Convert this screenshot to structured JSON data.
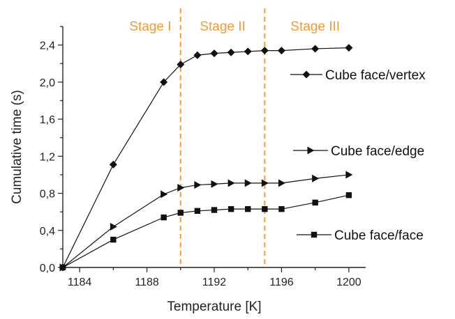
{
  "chart_data": {
    "type": "line",
    "title": "",
    "xlabel": "Temperature [K]",
    "ylabel": "Cumulative time (s)",
    "xlim": [
      1183,
      1201
    ],
    "ylim": [
      0,
      2.6
    ],
    "xticks": [
      1184,
      1188,
      1192,
      1196,
      1200
    ],
    "xtick_labels": [
      "1184",
      "1188",
      "1192",
      "1196",
      "1200"
    ],
    "yticks": [
      0,
      0.4,
      0.8,
      1.2,
      1.6,
      2.0,
      2.4
    ],
    "ytick_labels": [
      "0,0",
      "0,4",
      "0,8",
      "1,2",
      "1,6",
      "2,0",
      "2,4"
    ],
    "grid": false,
    "stage_lines": [
      1190,
      1195
    ],
    "stages": [
      {
        "label": "Stage I",
        "x": 1188.2
      },
      {
        "label": "Stage II",
        "x": 1192.5
      },
      {
        "label": "Stage III",
        "x": 1198
      }
    ],
    "stage_color": "#f39c33",
    "series": [
      {
        "name": "Cube face/vertex",
        "marker": "diamond",
        "x": [
          1183,
          1186,
          1189,
          1190,
          1191,
          1192,
          1193,
          1194,
          1195,
          1196,
          1198,
          1200
        ],
        "values": [
          0.0,
          1.11,
          2.0,
          2.19,
          2.29,
          2.31,
          2.32,
          2.33,
          2.34,
          2.34,
          2.36,
          2.37
        ]
      },
      {
        "name": "Cube face/edge",
        "marker": "triangle-right",
        "x": [
          1183,
          1186,
          1189,
          1190,
          1191,
          1192,
          1193,
          1194,
          1195,
          1196,
          1198,
          1200
        ],
        "values": [
          0.0,
          0.44,
          0.79,
          0.86,
          0.89,
          0.9,
          0.91,
          0.91,
          0.91,
          0.91,
          0.96,
          1.0
        ]
      },
      {
        "name": "Cube face/face",
        "marker": "square",
        "x": [
          1183,
          1186,
          1189,
          1190,
          1191,
          1192,
          1193,
          1194,
          1195,
          1196,
          1198,
          1200
        ],
        "values": [
          0.0,
          0.3,
          0.54,
          0.59,
          0.61,
          0.62,
          0.63,
          0.63,
          0.63,
          0.63,
          0.7,
          0.78
        ]
      }
    ]
  }
}
